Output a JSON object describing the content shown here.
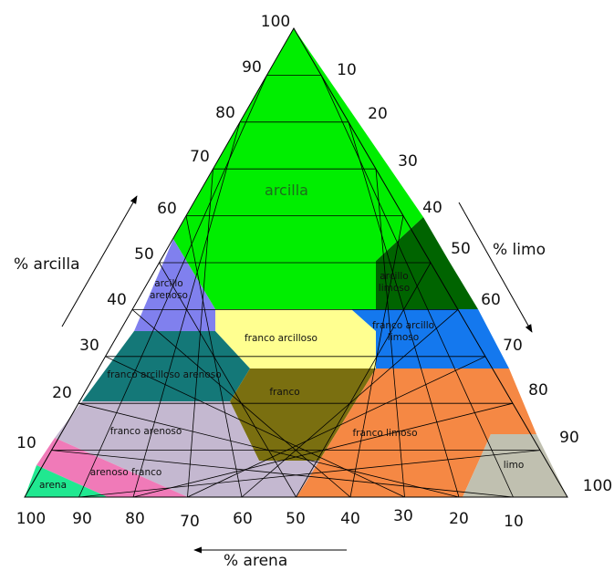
{
  "diagram": {
    "classes": [
      {
        "id": "arcilla",
        "label": "arcilla",
        "color": "#00ee00"
      },
      {
        "id": "arcillo-limoso",
        "label": "arcillo limoso",
        "color": "#006400"
      },
      {
        "id": "arcillo-arenoso",
        "label": "arcillo arenoso",
        "color": "#8080ee"
      },
      {
        "id": "franco-arcilloso",
        "label": "franco arcilloso",
        "color": "#ffff90"
      },
      {
        "id": "franco-arcillo-limoso",
        "label": "franco arcillo limoso",
        "color": "#1478ee"
      },
      {
        "id": "franco-arcilloso-arenoso",
        "label": "franco arcilloso arenoso",
        "color": "#147878"
      },
      {
        "id": "franco",
        "label": "franco",
        "color": "#7a6f10"
      },
      {
        "id": "franco-limoso",
        "label": "franco limoso",
        "color": "#f58844"
      },
      {
        "id": "franco-arenoso",
        "label": "franco arenoso",
        "color": "#c4b8d0"
      },
      {
        "id": "arenoso-franco",
        "label": "arenoso franco",
        "color": "#f07ab8"
      },
      {
        "id": "arena",
        "label": "arena",
        "color": "#20e890"
      },
      {
        "id": "limo",
        "label": "limo",
        "color": "#c0c0b0"
      }
    ],
    "axes": {
      "clay": {
        "title": "% arcilla",
        "ticks": [
          "10",
          "20",
          "30",
          "40",
          "50",
          "60",
          "70",
          "80",
          "90",
          "100"
        ]
      },
      "silt": {
        "title": "% limo",
        "ticks": [
          "10",
          "20",
          "30",
          "40",
          "50",
          "60",
          "70",
          "80",
          "90",
          "100"
        ]
      },
      "sand": {
        "title": "% arena",
        "ticks": [
          "100",
          "90",
          "80",
          "70",
          "60",
          "50",
          "40",
          "30",
          "20",
          "10"
        ]
      }
    }
  }
}
